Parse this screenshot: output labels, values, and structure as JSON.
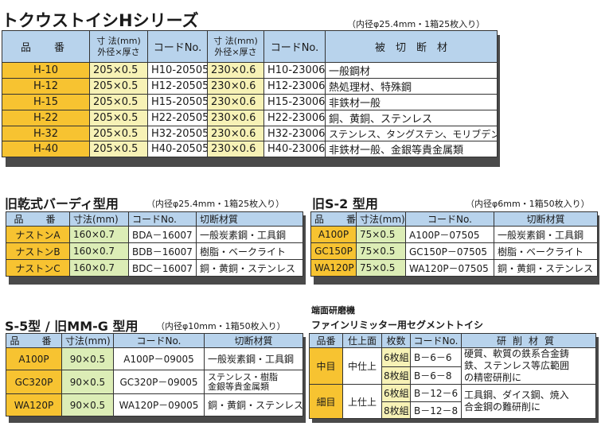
{
  "h_series": {
    "title": "トクウストイシHシリーズ",
    "note": "（内径φ25.4mm・1箱25枚入り）",
    "headers": [
      "品　番",
      "寸 法(mm)",
      "外径×厚さ",
      "コードNo.",
      "寸 法(mm)",
      "外径×厚さ",
      "コードNo.",
      "被　切　断　材"
    ],
    "rows": [
      [
        "H-10",
        "205×0.5",
        "H10-20505",
        "230×0.6",
        "H10-23006",
        "一般鋼材"
      ],
      [
        "H-12",
        "205×0.5",
        "H12-20505",
        "230×0.6",
        "H12-23006",
        "熱処理材、特殊鋼"
      ],
      [
        "H-15",
        "205×0.5",
        "H15-20505",
        "230×0.6",
        "H15-23006",
        "非鉄材一般"
      ],
      [
        "H-22",
        "205×0.5",
        "H22-20505",
        "230×0.6",
        "H22-23006",
        "銅、黄銅、ステンレス"
      ],
      [
        "H-32",
        "205×0.5",
        "H32-20505",
        "230×0.6",
        "H32-23006",
        "ステンレス、タングステン、モリブデン"
      ],
      [
        "H-40",
        "205×0.5",
        "H40-20505",
        "230×0.6",
        "H40-23006",
        "非鉄材一般、金銀等貴金属類"
      ]
    ]
  },
  "birdie": {
    "title": "旧乾式バーディ型用",
    "note": "（内径φ25.4mm・1箱25枚入り）",
    "headers": [
      "品　番",
      "寸法(mm)",
      "コードNo.",
      "切断材質"
    ],
    "rows": [
      [
        "ナストンA",
        "160×0.7",
        "BDA－16007",
        "一般炭素鋼・工具鋼"
      ],
      [
        "ナストンB",
        "160×0.7",
        "BDB－16007",
        "樹脂・ベークライト"
      ],
      [
        "ナストンC",
        "160×0.7",
        "BDC－16007",
        "銅・黄銅・ステンレス"
      ]
    ]
  },
  "s2": {
    "title": "旧S-2 型用",
    "note": "（内径φ6mm・1箱50枚入り）",
    "headers": [
      "品　番",
      "寸法(mm)",
      "コードNo.",
      "切断材質"
    ],
    "rows": [
      [
        "A100P",
        "75×0.5",
        "A100P－07505",
        "一般炭素鋼・工具鋼"
      ],
      [
        "GC150P",
        "75×0.5",
        "GC150P－07505",
        "樹脂・ベークライト"
      ],
      [
        "WA120P",
        "75×0.5",
        "WA120P－07505",
        "銅・黄銅・ステンレス"
      ]
    ]
  },
  "s5": {
    "title": "S-5型 / 旧MM-G 型用",
    "note": "（内径φ10mm・1箱50枚入り）",
    "headers": [
      "品　番",
      "寸法(mm)",
      "コードNo.",
      "切断材質"
    ],
    "rows": [
      [
        "A100P",
        "90×0.5",
        "A100P－09005",
        "一般炭素鋼・工具鋼"
      ],
      [
        "GC320P",
        "90×0.5",
        "GC320P－09005",
        "ステンレス・樹脂",
        "金銀等貴金属類"
      ],
      [
        "WA120P",
        "90×0.5",
        "WA120P－09005",
        "銅・黄銅・ステンレス"
      ]
    ]
  },
  "fine": {
    "title1": "端面研磨機",
    "title2": "ファインリミッター用セグメントトイシ",
    "headers": [
      "品番",
      "仕上面",
      "枚数",
      "コードNo.",
      "研削材質"
    ],
    "rows": [
      {
        "grade": "中目",
        "finish": "中仕上",
        "count": "6枚組",
        "code": "B－6－6"
      },
      {
        "count": "8枚組",
        "code": "B－6－8"
      },
      {
        "grade": "細目",
        "finish": "上仕上",
        "count": "6枚組",
        "code": "B－12－6"
      },
      {
        "count": "8枚組",
        "code": "B－12－8"
      }
    ],
    "material_lines": [
      "硬質、軟質の鉄系合金鋳",
      "鉄、ステンレス等広範囲",
      "の精密研削に",
      "工具鋼、ダイス鋼、焼入",
      "合金鋼の難研削に"
    ]
  }
}
